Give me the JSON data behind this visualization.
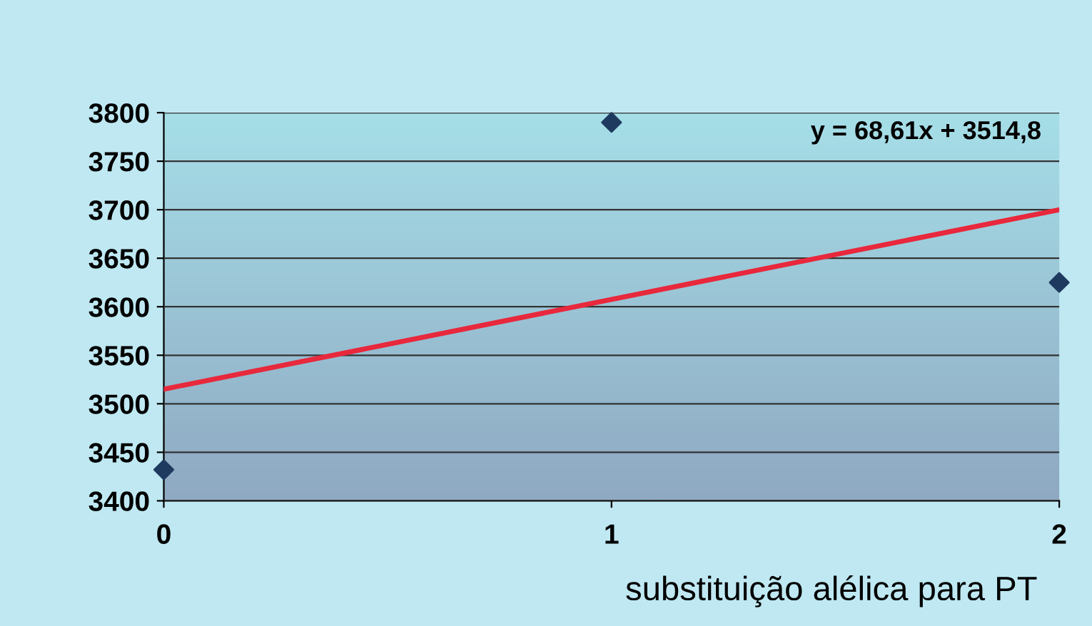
{
  "chart_data": {
    "type": "scatter",
    "marker": "diamond",
    "grid": "y",
    "legend": false,
    "x": [
      0,
      1,
      2
    ],
    "series": [
      {
        "color": "#1f3a5f",
        "values": [
          3432,
          3790,
          3625
        ]
      },
      {
        "type": "line",
        "color": "#e8283c",
        "x": [
          0,
          2
        ],
        "values": [
          3515,
          3700
        ],
        "marker": "none",
        "line_style": "solid"
      }
    ],
    "xlim": [
      0,
      2
    ],
    "xticks": [
      0,
      1,
      2
    ],
    "ylim": [
      3400,
      3800
    ],
    "yticks": [
      3400,
      3450,
      3500,
      3550,
      3600,
      3650,
      3700,
      3750,
      3800
    ],
    "annotations": [
      "y = 68,61x + 3514,8",
      "substituição alélica para PT"
    ]
  }
}
